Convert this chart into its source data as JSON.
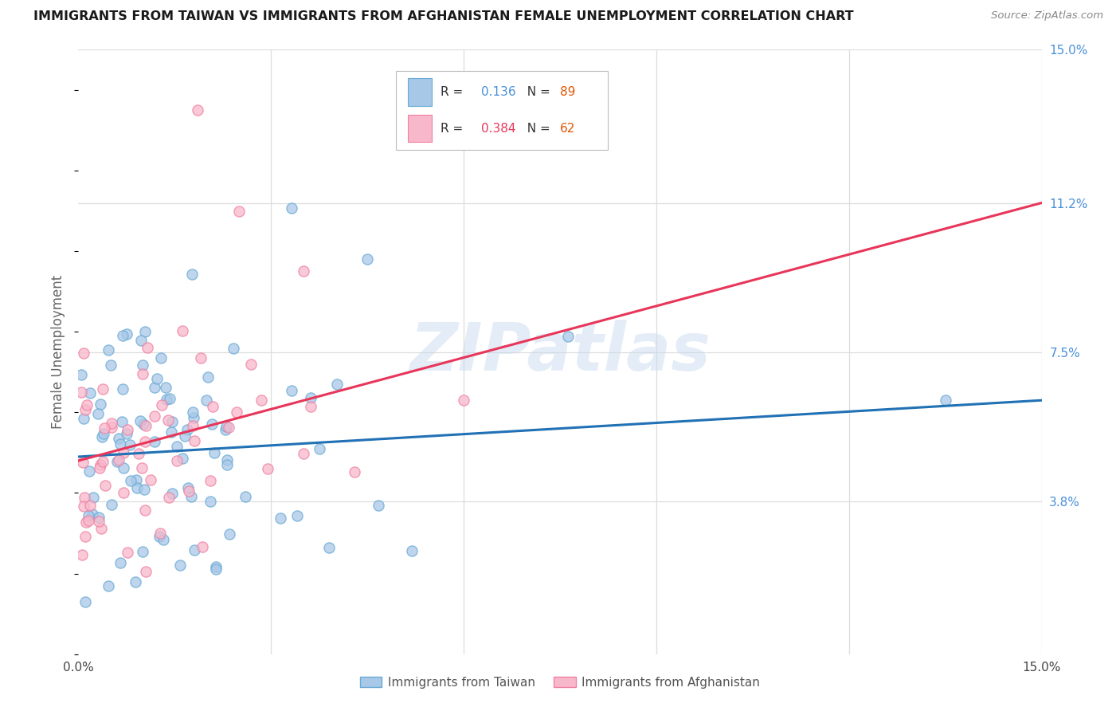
{
  "title": "IMMIGRANTS FROM TAIWAN VS IMMIGRANTS FROM AFGHANISTAN FEMALE UNEMPLOYMENT CORRELATION CHART",
  "source": "Source: ZipAtlas.com",
  "ylabel": "Female Unemployment",
  "right_yticks": [
    3.8,
    7.5,
    11.2,
    15.0
  ],
  "right_yticklabels": [
    "3.8%",
    "7.5%",
    "11.2%",
    "15.0%"
  ],
  "xmin": 0.0,
  "xmax": 15.0,
  "ymin": 0.0,
  "ymax": 15.0,
  "taiwan_R": 0.136,
  "taiwan_N": 89,
  "afghanistan_R": 0.384,
  "afghanistan_N": 62,
  "taiwan_color": "#a8c8e8",
  "taiwan_edge_color": "#6aaad4",
  "taiwan_line_color": "#2171b5",
  "afghanistan_color": "#f8b8cc",
  "afghanistan_edge_color": "#f080a0",
  "afghanistan_line_color": "#e8365a",
  "watermark": "ZIPatlas",
  "legend_taiwan_label": "Immigrants from Taiwan",
  "legend_afghanistan_label": "Immigrants from Afghanistan",
  "background_color": "#ffffff",
  "grid_color": "#dddddd",
  "tw_line_start_y": 4.9,
  "tw_line_end_y": 6.3,
  "af_line_start_y": 4.8,
  "af_line_end_y": 11.2
}
